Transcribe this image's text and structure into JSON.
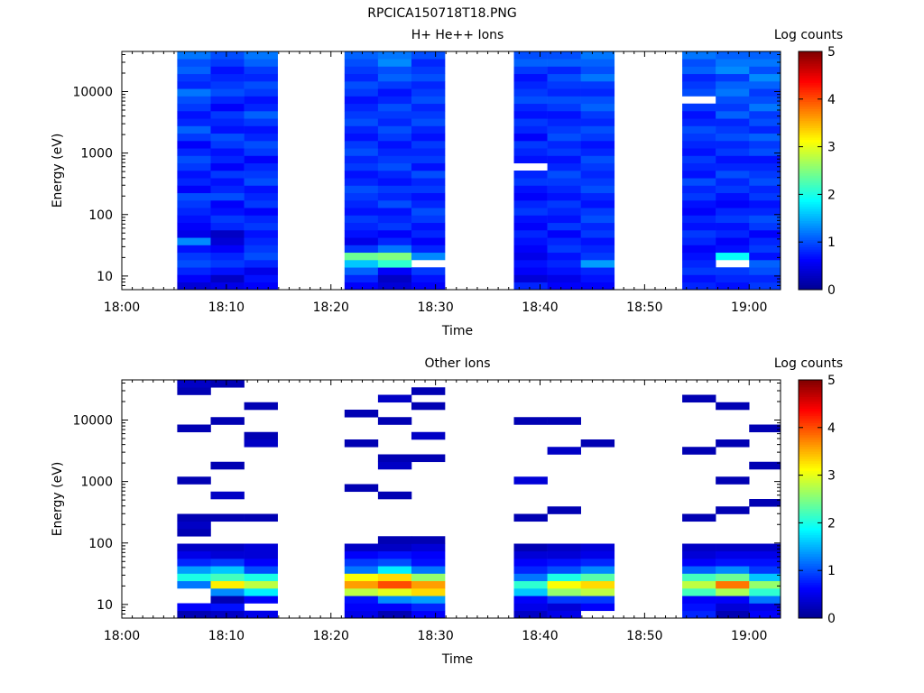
{
  "figure_title": "RPCICA150718T18.PNG",
  "colormap": [
    "#00008f",
    "#0000ff",
    "#0080ff",
    "#00ffff",
    "#80ff80",
    "#ffff00",
    "#ff8000",
    "#ff0000",
    "#800000"
  ],
  "chart_data": [
    {
      "type": "heatmap",
      "title": "H+ He++ Ions",
      "xlabel": "Time",
      "ylabel": "Energy (eV)",
      "colorbar_label": "Log counts",
      "colorbar_ticks": [
        "0",
        "1",
        "2",
        "3",
        "4",
        "5"
      ],
      "clim": [
        0,
        5
      ],
      "x_ticks": [
        "18:00",
        "18:10",
        "18:20",
        "18:30",
        "18:40",
        "18:50",
        "19:00"
      ],
      "xlim_minutes_after_1800": [
        0,
        63
      ],
      "y_scale": "log",
      "y_ticks": [
        "10",
        "100",
        "1000",
        "10000"
      ],
      "ylim": [
        6,
        45000
      ],
      "time_columns_minutes": [
        [
          5.3,
          8.5
        ],
        [
          8.5,
          11.7
        ],
        [
          11.7,
          14.9
        ],
        [
          21.3,
          24.5
        ],
        [
          24.5,
          27.7
        ],
        [
          27.7,
          30.9
        ],
        [
          37.5,
          40.7
        ],
        [
          40.7,
          43.9
        ],
        [
          43.9,
          47.1
        ],
        [
          53.6,
          56.8
        ],
        [
          56.8,
          60.0
        ],
        [
          60.0,
          63.0
        ]
      ],
      "columns_log_counts": [
        [
          0.4,
          0.6,
          0.8,
          1.0,
          0.9,
          0.7,
          1.3,
          0.5,
          0.6,
          0.7,
          0.8,
          0.9,
          1.0,
          0.6,
          0.8,
          0.7,
          0.9,
          1.0,
          0.8,
          0.6,
          0.9,
          1.1,
          0.8,
          0.7,
          0.9,
          1.0,
          1.2,
          0.8,
          0.9,
          1.1,
          1.0,
          1.2
        ],
        [
          0.5,
          0.3,
          0.7,
          0.9,
          0.8,
          0.6,
          0.4,
          0.3,
          0.8,
          0.9,
          0.7,
          0.6,
          1.0,
          0.8,
          0.7,
          0.9,
          0.6,
          0.8,
          0.7,
          0.9,
          1.0,
          0.7,
          0.8,
          0.9,
          0.6,
          0.8,
          1.0,
          0.9,
          0.8,
          0.7,
          0.9,
          1.0
        ],
        [
          0.6,
          0.7,
          0.5,
          0.8,
          1.0,
          0.9,
          0.8,
          0.7,
          0.9,
          0.8,
          0.6,
          0.9,
          0.8,
          0.7,
          1.0,
          0.9,
          0.8,
          0.6,
          0.9,
          1.0,
          0.8,
          0.7,
          0.9,
          1.1,
          0.8,
          0.7,
          0.9,
          1.0,
          0.8,
          0.9,
          1.1,
          1.2
        ],
        [
          0.6,
          0.8,
          1.1,
          1.6,
          2.4,
          0.9,
          0.5,
          0.7,
          0.8,
          0.9,
          0.7,
          0.8,
          0.9,
          1.0,
          0.8,
          0.7,
          0.9,
          0.8,
          1.0,
          0.9,
          0.7,
          0.8,
          1.0,
          0.9,
          0.8,
          0.7,
          0.9,
          1.0,
          0.8,
          0.9,
          1.0,
          1.1
        ],
        [
          0.4,
          0.3,
          0.6,
          2.1,
          2.5,
          1.2,
          0.8,
          0.6,
          0.9,
          0.8,
          0.7,
          1.0,
          0.8,
          0.9,
          0.7,
          0.8,
          1.0,
          0.9,
          0.8,
          0.7,
          0.9,
          1.0,
          0.8,
          0.9,
          1.0,
          0.8,
          0.7,
          0.9,
          1.1,
          1.0,
          1.3,
          1.2
        ],
        [
          0.6,
          0.7,
          0.9,
          -1,
          1.3,
          0.8,
          0.6,
          0.8,
          0.7,
          0.9,
          1.0,
          0.8,
          0.7,
          0.9,
          0.8,
          1.0,
          0.7,
          0.9,
          0.8,
          0.9,
          0.7,
          0.8,
          1.0,
          0.9,
          0.8,
          1.0,
          0.9,
          0.8,
          1.0,
          0.9,
          0.8,
          1.0
        ],
        [
          0.8,
          0.4,
          0.6,
          0.7,
          0.5,
          0.6,
          0.7,
          0.8,
          0.6,
          0.7,
          0.9,
          0.8,
          0.6,
          0.7,
          0.9,
          0.8,
          -1,
          0.7,
          0.8,
          0.9,
          0.6,
          0.8,
          0.9,
          0.7,
          0.8,
          1.0,
          0.9,
          0.8,
          0.7,
          0.9,
          1.1,
          1.0
        ],
        [
          0.6,
          0.5,
          0.7,
          0.8,
          0.7,
          0.9,
          0.8,
          0.6,
          0.9,
          0.7,
          0.8,
          0.9,
          0.7,
          0.8,
          0.9,
          1.0,
          0.8,
          0.7,
          0.9,
          0.8,
          1.0,
          0.9,
          0.8,
          0.7,
          0.9,
          1.0,
          0.8,
          0.9,
          1.0,
          0.8,
          1.1,
          1.0
        ],
        [
          0.6,
          0.7,
          0.8,
          1.4,
          0.9,
          0.8,
          0.7,
          0.9,
          0.8,
          1.0,
          0.9,
          0.7,
          0.8,
          1.0,
          0.9,
          0.8,
          0.9,
          1.0,
          0.8,
          0.7,
          0.9,
          1.0,
          0.8,
          0.9,
          1.1,
          1.0,
          0.8,
          0.9,
          1.2,
          1.0,
          1.1,
          1.2
        ],
        [
          0.8,
          0.7,
          0.9,
          0.8,
          0.7,
          0.6,
          0.8,
          0.9,
          0.7,
          0.8,
          0.6,
          0.7,
          0.9,
          0.8,
          1.0,
          0.7,
          0.8,
          0.9,
          0.7,
          0.8,
          0.9,
          1.0,
          0.8,
          0.7,
          0.9,
          -1,
          1.0,
          0.9,
          0.8,
          1.1,
          1.0,
          1.2
        ],
        [
          0.7,
          0.8,
          0.9,
          -1,
          1.9,
          0.7,
          0.6,
          0.8,
          0.7,
          0.9,
          0.8,
          0.6,
          0.7,
          0.9,
          0.8,
          1.0,
          0.8,
          0.7,
          0.9,
          0.8,
          1.0,
          0.9,
          0.8,
          1.1,
          0.9,
          1.0,
          1.2,
          1.1,
          0.9,
          1.3,
          1.2,
          1.1
        ],
        [
          0.9,
          0.8,
          1.0,
          1.1,
          0.7,
          0.9,
          0.8,
          0.6,
          0.9,
          1.0,
          0.8,
          0.7,
          0.9,
          0.8,
          1.0,
          0.9,
          0.8,
          0.7,
          1.0,
          0.9,
          1.1,
          0.8,
          1.0,
          0.9,
          1.2,
          1.0,
          0.9,
          1.1,
          1.3,
          1.0,
          1.2,
          1.1
        ]
      ]
    },
    {
      "type": "heatmap",
      "title": "Other Ions",
      "xlabel": "Time",
      "ylabel": "Energy (eV)",
      "colorbar_label": "Log counts",
      "colorbar_ticks": [
        "0",
        "1",
        "2",
        "3",
        "4",
        "5"
      ],
      "clim": [
        0,
        5
      ],
      "x_ticks": [
        "18:00",
        "18:10",
        "18:20",
        "18:30",
        "18:40",
        "18:50",
        "19:00"
      ],
      "xlim_minutes_after_1800": [
        0,
        63
      ],
      "y_scale": "log",
      "y_ticks": [
        "10",
        "100",
        "1000",
        "10000"
      ],
      "ylim": [
        6,
        45000
      ],
      "time_columns_minutes": [
        [
          5.3,
          8.5
        ],
        [
          8.5,
          11.7
        ],
        [
          11.7,
          14.9
        ],
        [
          21.3,
          24.5
        ],
        [
          24.5,
          27.7
        ],
        [
          27.7,
          30.9
        ],
        [
          37.5,
          40.7
        ],
        [
          40.7,
          43.9
        ],
        [
          43.9,
          47.1
        ],
        [
          53.6,
          56.8
        ],
        [
          56.8,
          60.0
        ],
        [
          60.0,
          63.0
        ]
      ],
      "columns_log_counts": [
        [
          0.2,
          0.6,
          -1,
          -1,
          1.2,
          2.0,
          1.4,
          0.8,
          0.5,
          0.3,
          -1,
          0.2,
          0.3,
          0.2,
          -1,
          -1,
          -1,
          -1,
          0.2,
          -1,
          -1,
          -1,
          -1,
          -1,
          -1,
          0.2,
          -1,
          -1,
          -1,
          -1,
          0.2,
          0.3
        ],
        [
          0.3,
          0.7,
          0.2,
          1.3,
          3.2,
          2.2,
          1.6,
          0.9,
          0.4,
          0.3,
          -1,
          -1,
          -1,
          0.2,
          -1,
          -1,
          0.3,
          -1,
          -1,
          -1,
          0.2,
          -1,
          -1,
          -1,
          -1,
          -1,
          0.2,
          -1,
          -1,
          -1,
          -1,
          0.2
        ],
        [
          0.5,
          -1,
          0.6,
          1.8,
          2.8,
          2.0,
          1.0,
          0.6,
          0.4,
          0.4,
          -1,
          -1,
          -1,
          0.2,
          -1,
          -1,
          -1,
          -1,
          -1,
          -1,
          -1,
          -1,
          -1,
          0.3,
          0.2,
          -1,
          -1,
          -1,
          0.2,
          -1,
          -1,
          -1
        ],
        [
          0.5,
          0.6,
          0.7,
          2.8,
          3.6,
          3.1,
          1.2,
          0.9,
          0.6,
          0.3,
          -1,
          -1,
          -1,
          -1,
          -1,
          -1,
          -1,
          0.2,
          -1,
          -1,
          -1,
          -1,
          -1,
          0.2,
          -1,
          -1,
          -1,
          0.2,
          -1,
          -1,
          -1,
          -1
        ],
        [
          0.2,
          0.6,
          1.3,
          3.0,
          4.0,
          3.3,
          1.8,
          1.0,
          0.7,
          0.3,
          0.2,
          -1,
          -1,
          -1,
          -1,
          -1,
          0.2,
          -1,
          -1,
          -1,
          0.3,
          0.2,
          -1,
          -1,
          -1,
          -1,
          0.2,
          -1,
          -1,
          0.3,
          -1,
          -1
        ],
        [
          0.6,
          0.8,
          1.4,
          3.3,
          3.6,
          2.6,
          1.2,
          0.7,
          0.6,
          0.4,
          0.2,
          -1,
          -1,
          -1,
          -1,
          -1,
          -1,
          -1,
          -1,
          -1,
          -1,
          0.2,
          -1,
          -1,
          0.3,
          -1,
          -1,
          -1,
          0.2,
          -1,
          0.2,
          -1
        ],
        [
          0.3,
          0.5,
          0.6,
          1.6,
          2.1,
          1.2,
          0.8,
          0.6,
          0.4,
          0.2,
          -1,
          -1,
          -1,
          0.2,
          -1,
          -1,
          -1,
          -1,
          0.4,
          -1,
          -1,
          -1,
          -1,
          -1,
          -1,
          -1,
          0.2,
          -1,
          -1,
          -1,
          -1,
          -1
        ],
        [
          0.5,
          0.4,
          0.9,
          2.6,
          3.1,
          2.0,
          1.0,
          0.7,
          0.4,
          0.3,
          -1,
          -1,
          -1,
          -1,
          0.2,
          -1,
          -1,
          -1,
          -1,
          -1,
          -1,
          -1,
          0.3,
          -1,
          -1,
          -1,
          0.2,
          -1,
          -1,
          -1,
          -1,
          -1
        ],
        [
          -1,
          0.6,
          0.9,
          2.8,
          3.3,
          2.3,
          1.3,
          0.8,
          0.5,
          0.4,
          -1,
          -1,
          -1,
          -1,
          -1,
          -1,
          -1,
          -1,
          -1,
          -1,
          -1,
          -1,
          -1,
          0.2,
          -1,
          -1,
          -1,
          -1,
          -1,
          -1,
          -1,
          -1
        ],
        [
          0.8,
          0.7,
          0.6,
          2.2,
          2.8,
          2.2,
          1.1,
          0.6,
          0.4,
          0.3,
          -1,
          -1,
          -1,
          0.2,
          -1,
          -1,
          -1,
          -1,
          -1,
          -1,
          -1,
          -1,
          0.2,
          -1,
          -1,
          -1,
          -1,
          -1,
          -1,
          0.2,
          -1,
          -1
        ],
        [
          0.2,
          0.4,
          0.6,
          2.7,
          3.8,
          2.4,
          1.3,
          0.7,
          0.5,
          0.3,
          -1,
          -1,
          -1,
          -1,
          0.2,
          -1,
          -1,
          -1,
          0.2,
          -1,
          -1,
          -1,
          -1,
          0.2,
          -1,
          -1,
          -1,
          -1,
          0.2,
          -1,
          -1,
          -1
        ],
        [
          0.6,
          0.5,
          1.2,
          2.1,
          2.6,
          1.6,
          0.9,
          0.7,
          0.5,
          0.3,
          -1,
          -1,
          -1,
          -1,
          -1,
          0.2,
          -1,
          -1,
          -1,
          -1,
          0.2,
          -1,
          -1,
          -1,
          -1,
          0.2,
          -1,
          -1,
          -1,
          -1,
          -1,
          -1
        ]
      ]
    }
  ]
}
